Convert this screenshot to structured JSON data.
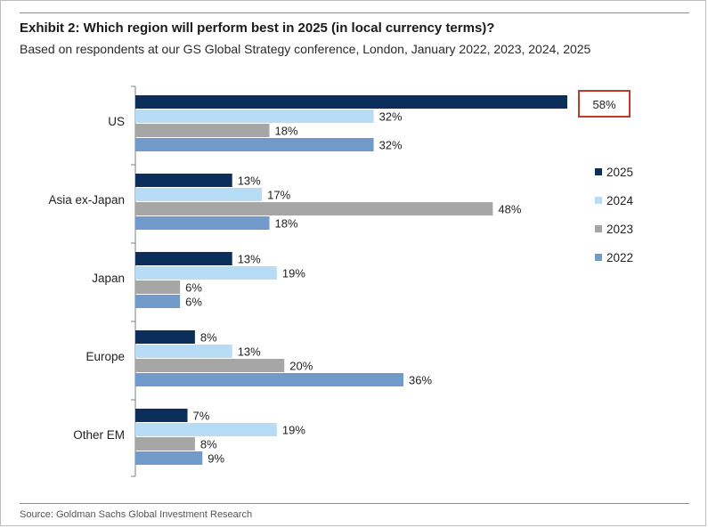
{
  "title": "Exhibit 2: Which region will perform best in 2025 (in local currency terms)?",
  "subtitle": "Based on respondents at our GS Global Strategy conference, London, January 2022, 2023, 2024, 2025",
  "source": "Source: Goldman Sachs Global Investment Research",
  "highlight_label": "58%",
  "colors": {
    "2025": "#0b2e5a",
    "2024": "#b6dcf6",
    "2023": "#a6a6a6",
    "2022": "#7199c9",
    "highlight_border": "#c0392b"
  },
  "chart_data": {
    "type": "bar",
    "orientation": "horizontal",
    "categories": [
      "US",
      "Asia ex-Japan",
      "Japan",
      "Europe",
      "Other EM"
    ],
    "series": [
      {
        "name": "2025",
        "values": [
          58,
          13,
          13,
          8,
          7
        ]
      },
      {
        "name": "2024",
        "values": [
          32,
          17,
          19,
          13,
          19
        ]
      },
      {
        "name": "2023",
        "values": [
          18,
          48,
          6,
          20,
          8
        ]
      },
      {
        "name": "2022",
        "values": [
          32,
          18,
          6,
          36,
          9
        ]
      }
    ],
    "unit": "%",
    "xlim": [
      0,
      60
    ],
    "grid": false,
    "legend_position": "right"
  }
}
